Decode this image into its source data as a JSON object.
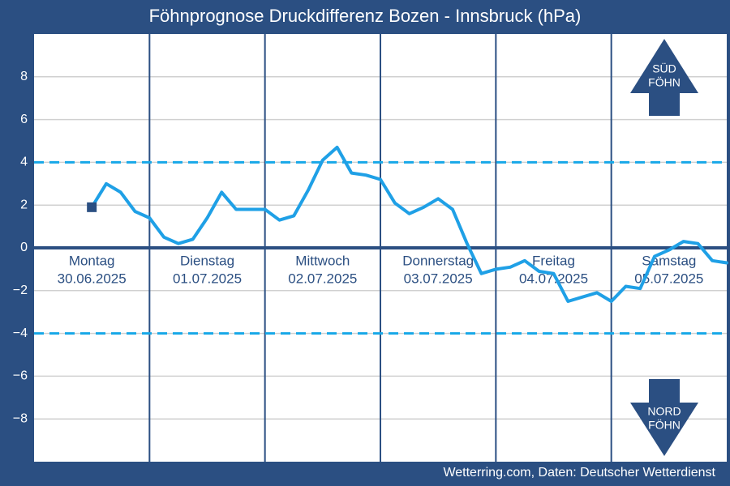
{
  "chart_data": {
    "type": "line",
    "title": "Föhnprognose Druckdifferenz Bozen - Innsbruck (hPa)",
    "days": [
      {
        "name": "Montag",
        "date": "30.06.2025"
      },
      {
        "name": "Dienstag",
        "date": "01.07.2025"
      },
      {
        "name": "Mittwoch",
        "date": "02.07.2025"
      },
      {
        "name": "Donnerstag",
        "date": "03.07.2025"
      },
      {
        "name": "Freitag",
        "date": "04.07.2025"
      },
      {
        "name": "Samstag",
        "date": "05.07.2025"
      }
    ],
    "series": [
      {
        "color": "#1fa0e6",
        "values": [
          1.9,
          3.0,
          2.6,
          1.7,
          1.4,
          0.5,
          0.2,
          0.4,
          1.4,
          2.6,
          1.8,
          1.8,
          1.8,
          1.3,
          1.5,
          2.7,
          4.1,
          4.7,
          3.5,
          3.4,
          3.2,
          2.1,
          1.6,
          1.9,
          2.3,
          1.8,
          0.2,
          -1.2,
          -1.0,
          -0.9,
          -0.6,
          -1.1,
          -1.2,
          -2.5,
          -2.3,
          -2.1,
          -2.5,
          -1.8,
          -1.9,
          -0.4,
          -0.1,
          0.3,
          0.2,
          -0.6,
          -0.7
        ]
      }
    ],
    "ylim": [
      -10,
      10
    ],
    "yticks": [
      {
        "value": -8,
        "label": "−8"
      },
      {
        "value": -6,
        "label": "−6"
      },
      {
        "value": -4,
        "label": "−4"
      },
      {
        "value": -2,
        "label": "−2"
      },
      0,
      2,
      4,
      6,
      8
    ],
    "thresholds": [
      4,
      -4
    ],
    "grid": true,
    "annotations": {
      "south": [
        "SÜD",
        "FÖHN"
      ],
      "north": [
        "NORD",
        "FÖHN"
      ]
    },
    "credit": "Wetterring.com, Daten: Deutscher Wetterdienst"
  }
}
